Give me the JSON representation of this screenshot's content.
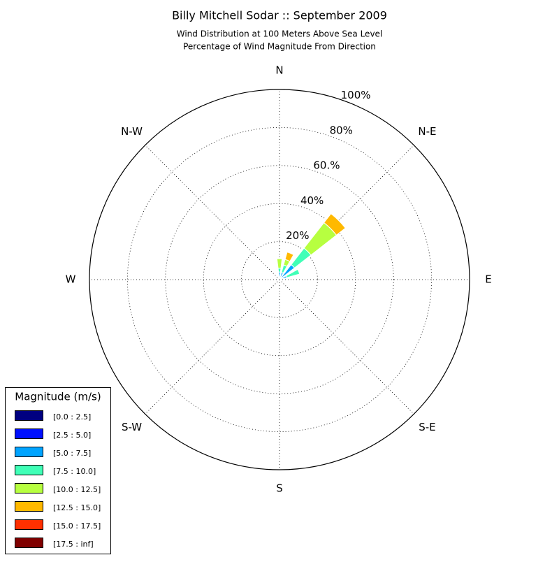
{
  "chart_data": {
    "type": "windrose",
    "title": "Billy Mitchell Sodar :: September 2009",
    "subtitle": [
      "Wind Distribution at 100 Meters Above Sea Level",
      "Percentage of Wind Magnitude From Direction"
    ],
    "x": [
      0,
      22.5,
      45,
      67.5
    ],
    "xticks": [
      {
        "value": 0,
        "label": "N"
      },
      {
        "value": 45,
        "label": "N-E"
      },
      {
        "value": 90,
        "label": "E"
      },
      {
        "value": 135,
        "label": "S-E"
      },
      {
        "value": 180,
        "label": "S"
      },
      {
        "value": 225,
        "label": "S-W"
      },
      {
        "value": 270,
        "label": "W"
      },
      {
        "value": 315,
        "label": "N-W"
      }
    ],
    "ylim": [
      0,
      100
    ],
    "yticks": [
      {
        "value": 20,
        "label": "20%"
      },
      {
        "value": 40,
        "label": "40%"
      },
      {
        "value": 60,
        "label": "60.%"
      },
      {
        "value": 80,
        "label": "80%"
      },
      {
        "value": 100,
        "label": "100%"
      }
    ],
    "grid": true,
    "legend_title": "Magnitude (m/s)",
    "legend_position": "lower-left",
    "series": [
      {
        "name": "[0.0 : 2.5]",
        "color": "#000080",
        "values": [
          0,
          0,
          0,
          0
        ]
      },
      {
        "name": "[2.5 : 5.0]",
        "color": "#0010ff",
        "values": [
          1,
          1,
          1,
          1
        ]
      },
      {
        "name": "[5.0 : 7.5]",
        "color": "#00a4ff",
        "values": [
          3,
          3,
          9,
          3
        ]
      },
      {
        "name": "[7.5 : 10.0]",
        "color": "#40ffb7",
        "values": [
          2,
          4,
          11,
          7
        ]
      },
      {
        "name": "[10.0 : 12.5]",
        "color": "#b7ff40",
        "values": [
          5,
          3,
          17,
          0
        ]
      },
      {
        "name": "[12.5 : 15.0]",
        "color": "#ffb900",
        "values": [
          0,
          4,
          6,
          0
        ]
      },
      {
        "name": "[15.0 : 17.5]",
        "color": "#ff3000",
        "values": [
          0,
          0,
          0,
          0
        ]
      },
      {
        "name": "[17.5 : inf]",
        "color": "#800000",
        "values": [
          0,
          0,
          0,
          0
        ]
      }
    ]
  }
}
